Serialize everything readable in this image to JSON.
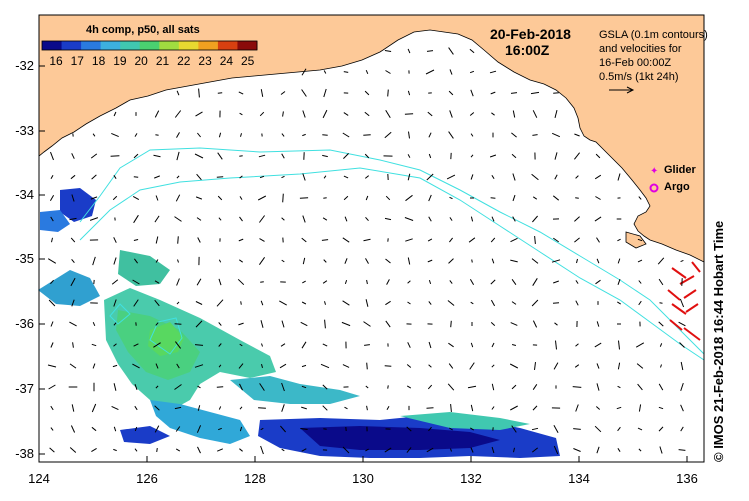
{
  "map": {
    "composite_label": "4h comp, p50, all sats",
    "date": "20-Feb-2018",
    "time": "16:00Z",
    "info_lines": [
      "GSLA (0.1m contours)",
      "and velocities for",
      "16-Feb 00:00Z",
      "0.5m/s (1kt 24h)"
    ],
    "colorbar": {
      "ticks": [
        "16",
        "17",
        "18",
        "19",
        "20",
        "21",
        "22",
        "23",
        "24",
        "25"
      ],
      "colors": [
        "#0a0a8a",
        "#1a3cc8",
        "#2a7ae0",
        "#3cb0e0",
        "#40c8b0",
        "#4ad070",
        "#a0dc40",
        "#e8d830",
        "#f0a020",
        "#d84010",
        "#8a0a0a"
      ]
    },
    "y_axis_labels": [
      "-32",
      "-33",
      "-34",
      "-35",
      "-36",
      "-37",
      "-38"
    ],
    "x_axis_labels": [
      "124",
      "126",
      "128",
      "130",
      "132",
      "134",
      "136"
    ],
    "legend": {
      "glider_label": "Glider",
      "argo_label": "Argo",
      "glider_color": "#e000e0",
      "argo_color": "#e000e0"
    },
    "credit": "© IMOS 21-Feb-2018 16:44 Hobart Time",
    "colors": {
      "land": "#fdc998",
      "ocean": "#ffffff",
      "contour": "#40e0e0",
      "glider_track": "#e01010"
    }
  }
}
